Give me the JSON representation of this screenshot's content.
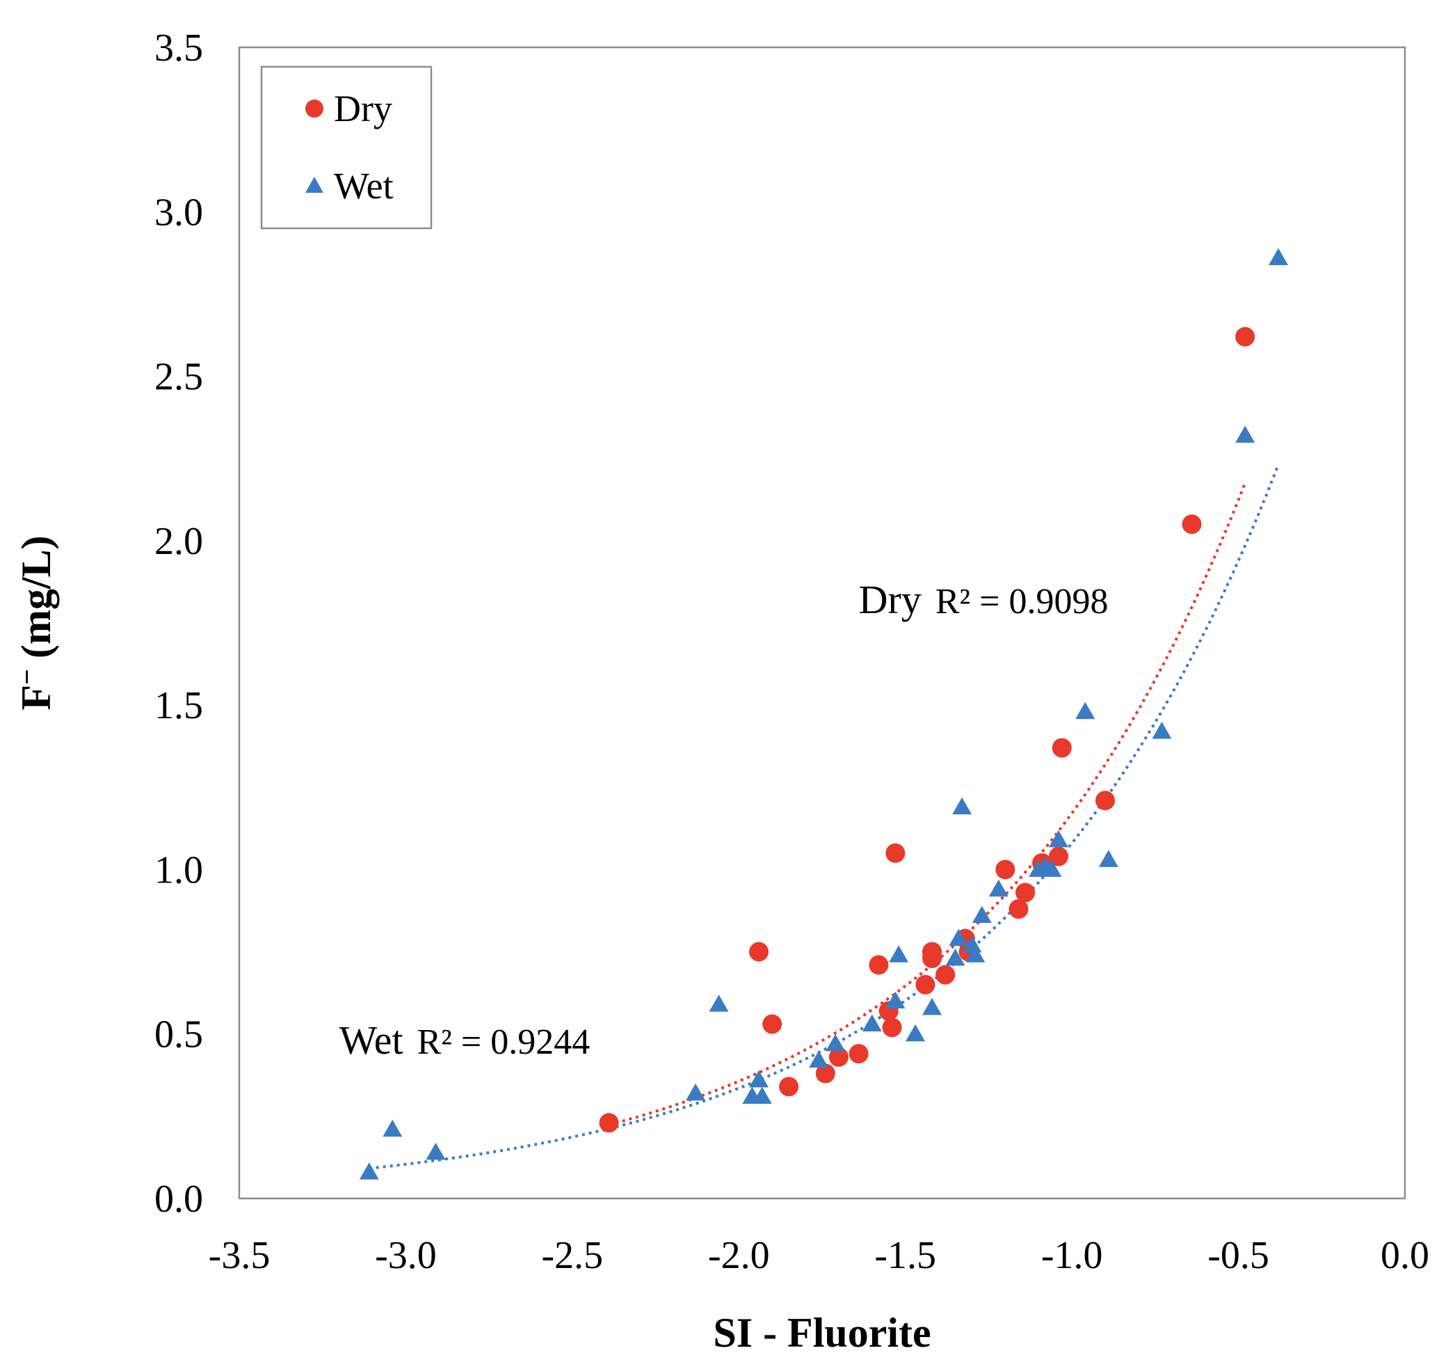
{
  "chart_data": {
    "type": "scatter",
    "title": "",
    "xlabel": "SI - Fluorite",
    "ylabel_main": "F",
    "ylabel_super": "−",
    "ylabel_unit": " (mg/L)",
    "xlim": [
      -3.5,
      0.0
    ],
    "ylim": [
      0.0,
      3.5
    ],
    "x_ticks": [
      {
        "value": -3.5,
        "label": "-3.5"
      },
      {
        "value": -3.0,
        "label": "-3.0"
      },
      {
        "value": -2.5,
        "label": "-2.5"
      },
      {
        "value": -2.0,
        "label": "-2.0"
      },
      {
        "value": -1.5,
        "label": "-1.5"
      },
      {
        "value": -1.0,
        "label": "-1.0"
      },
      {
        "value": -0.5,
        "label": "-0.5"
      },
      {
        "value": 0.0,
        "label": "0.0"
      }
    ],
    "y_ticks": [
      {
        "value": 0.0,
        "label": "0.0"
      },
      {
        "value": 0.5,
        "label": "0.5"
      },
      {
        "value": 1.0,
        "label": "1.0"
      },
      {
        "value": 1.5,
        "label": "1.5"
      },
      {
        "value": 2.0,
        "label": "2.0"
      },
      {
        "value": 2.5,
        "label": "2.5"
      },
      {
        "value": 3.0,
        "label": "3.0"
      },
      {
        "value": 3.5,
        "label": "3.5"
      }
    ],
    "grid": false,
    "legend_position": "top-left",
    "series": [
      {
        "name": "Dry",
        "marker": "circle",
        "color": "#e8392b",
        "points": [
          [
            -2.39,
            0.23
          ],
          [
            -1.94,
            0.75
          ],
          [
            -1.9,
            0.53
          ],
          [
            -1.85,
            0.34
          ],
          [
            -1.74,
            0.38
          ],
          [
            -1.7,
            0.43
          ],
          [
            -1.64,
            0.44
          ],
          [
            -1.58,
            0.71
          ],
          [
            -1.55,
            0.57
          ],
          [
            -1.54,
            0.52
          ],
          [
            -1.53,
            1.05
          ],
          [
            -1.44,
            0.65
          ],
          [
            -1.42,
            0.73
          ],
          [
            -1.42,
            0.75
          ],
          [
            -1.38,
            0.68
          ],
          [
            -1.32,
            0.79
          ],
          [
            -1.31,
            0.75
          ],
          [
            -1.2,
            1.0
          ],
          [
            -1.16,
            0.88
          ],
          [
            -1.14,
            0.93
          ],
          [
            -1.09,
            1.02
          ],
          [
            -1.04,
            1.04
          ],
          [
            -1.03,
            1.37
          ],
          [
            -0.9,
            1.21
          ],
          [
            -0.64,
            2.05
          ],
          [
            -0.48,
            2.62
          ]
        ]
      },
      {
        "name": "Wet",
        "marker": "triangle",
        "color": "#3a7cc4",
        "points": [
          [
            -3.11,
            0.08
          ],
          [
            -3.04,
            0.21
          ],
          [
            -2.91,
            0.14
          ],
          [
            -2.13,
            0.32
          ],
          [
            -2.06,
            0.59
          ],
          [
            -1.96,
            0.31
          ],
          [
            -1.94,
            0.36
          ],
          [
            -1.93,
            0.31
          ],
          [
            -1.76,
            0.42
          ],
          [
            -1.71,
            0.47
          ],
          [
            -1.6,
            0.53
          ],
          [
            -1.53,
            0.6
          ],
          [
            -1.52,
            0.74
          ],
          [
            -1.47,
            0.5
          ],
          [
            -1.42,
            0.58
          ],
          [
            -1.35,
            0.73
          ],
          [
            -1.34,
            0.79
          ],
          [
            -1.33,
            1.19
          ],
          [
            -1.3,
            0.77
          ],
          [
            -1.29,
            0.74
          ],
          [
            -1.27,
            0.86
          ],
          [
            -1.22,
            0.94
          ],
          [
            -1.1,
            1.0
          ],
          [
            -1.08,
            1.01
          ],
          [
            -1.06,
            1.0
          ],
          [
            -1.04,
            1.09
          ],
          [
            -0.96,
            1.48
          ],
          [
            -0.89,
            1.03
          ],
          [
            -0.73,
            1.42
          ],
          [
            -0.48,
            2.32
          ],
          [
            -0.38,
            2.86
          ]
        ]
      }
    ],
    "trendlines": [
      {
        "series": "Dry",
        "type": "exponential",
        "a": 3.85,
        "b": 1.19,
        "x_from": -2.39,
        "x_to": -0.48,
        "r2_label": "R² = 0.9098",
        "color": "#e8392b"
      },
      {
        "series": "Wet",
        "type": "exponential",
        "a": 3.48,
        "b": 1.17,
        "x_from": -3.11,
        "x_to": -0.38,
        "r2_label": "R² = 0.9244",
        "color": "#3a7cc4"
      }
    ],
    "annotations": [
      {
        "series_label": "Dry",
        "r2_label": "R² = 0.9098",
        "at": [
          -1.64,
          1.78
        ]
      },
      {
        "series_label": "Wet",
        "r2_label": "R² = 0.9244",
        "at": [
          -3.2,
          0.44
        ]
      }
    ]
  }
}
